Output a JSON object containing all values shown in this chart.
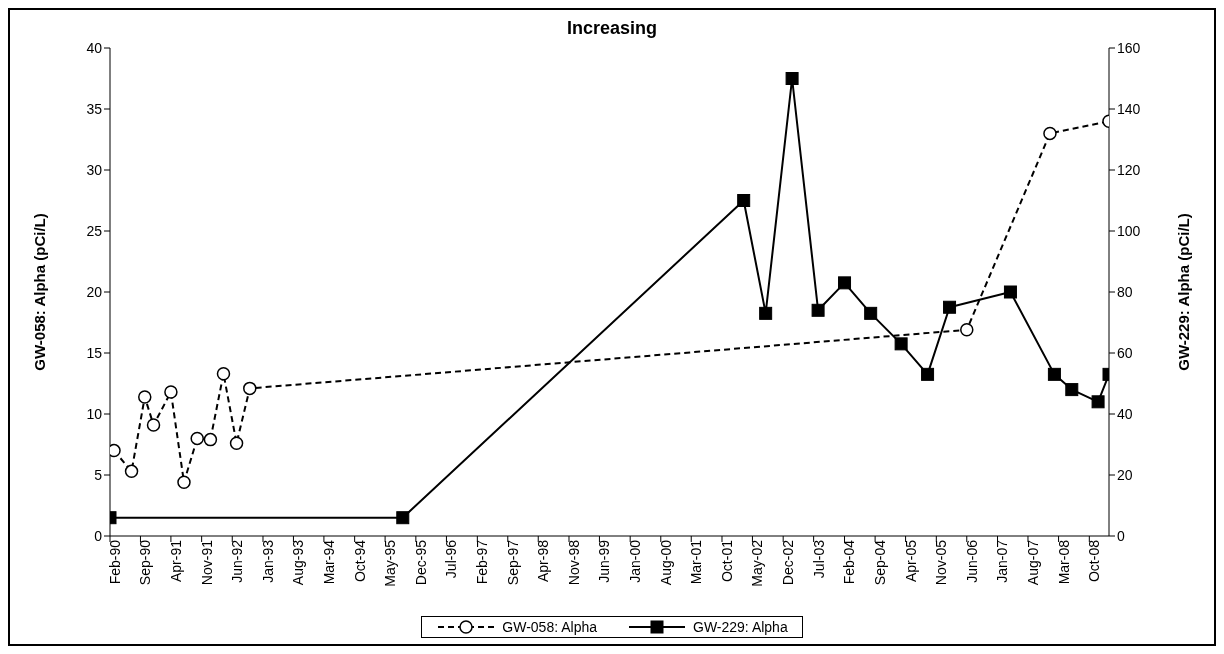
{
  "chart_data": {
    "type": "line",
    "title": "Increasing",
    "ylabel": "GW-058: Alpha (pCi/L)",
    "y2label": "GW-229: Alpha (pCi/L)",
    "xlim": [
      "1990-02",
      "2009-02-15"
    ],
    "xticks": [
      {
        "value": "1990-02",
        "label": "Feb-90"
      },
      {
        "value": "1990-09",
        "label": "Sep-90"
      },
      {
        "value": "1991-04",
        "label": "Apr-91"
      },
      {
        "value": "1991-11",
        "label": "Nov-91"
      },
      {
        "value": "1992-06",
        "label": "Jun-92"
      },
      {
        "value": "1993-01",
        "label": "Jan-93"
      },
      {
        "value": "1993-08",
        "label": "Aug-93"
      },
      {
        "value": "1994-03",
        "label": "Mar-94"
      },
      {
        "value": "1994-10",
        "label": "Oct-94"
      },
      {
        "value": "1995-05",
        "label": "May-95"
      },
      {
        "value": "1995-12",
        "label": "Dec-95"
      },
      {
        "value": "1996-07",
        "label": "Jul-96"
      },
      {
        "value": "1997-02",
        "label": "Feb-97"
      },
      {
        "value": "1997-09",
        "label": "Sep-97"
      },
      {
        "value": "1998-04",
        "label": "Apr-98"
      },
      {
        "value": "1998-11",
        "label": "Nov-98"
      },
      {
        "value": "1999-06",
        "label": "Jun-99"
      },
      {
        "value": "2000-01",
        "label": "Jan-00"
      },
      {
        "value": "2000-08",
        "label": "Aug-00"
      },
      {
        "value": "2001-03",
        "label": "Mar-01"
      },
      {
        "value": "2001-10",
        "label": "Oct-01"
      },
      {
        "value": "2002-05",
        "label": "May-02"
      },
      {
        "value": "2002-12",
        "label": "Dec-02"
      },
      {
        "value": "2003-07",
        "label": "Jul-03"
      },
      {
        "value": "2004-02",
        "label": "Feb-04"
      },
      {
        "value": "2004-09",
        "label": "Sep-04"
      },
      {
        "value": "2005-04",
        "label": "Apr-05"
      },
      {
        "value": "2005-11",
        "label": "Nov-05"
      },
      {
        "value": "2006-06",
        "label": "Jun-06"
      },
      {
        "value": "2007-01",
        "label": "Jan-07"
      },
      {
        "value": "2007-08",
        "label": "Aug-07"
      },
      {
        "value": "2008-03",
        "label": "Mar-08"
      },
      {
        "value": "2008-10",
        "label": "Oct-08"
      }
    ],
    "ylim": [
      0,
      40
    ],
    "yticks": [
      0,
      5,
      10,
      15,
      20,
      25,
      30,
      35,
      40
    ],
    "y2lim": [
      0,
      160
    ],
    "y2ticks": [
      0,
      20,
      40,
      60,
      80,
      100,
      120,
      140,
      160
    ],
    "legend": "bottom",
    "series": [
      {
        "name": "GW-058: Alpha",
        "color": "#000000",
        "marker": "circle",
        "line_style": "dashed",
        "x": [
          "1990-03",
          "1990-07",
          "1990-10",
          "1990-12",
          "1991-04",
          "1991-07",
          "1991-10",
          "1992-01",
          "1992-04",
          "1992-07",
          "1992-10",
          "2006-06",
          "2008-01",
          "2009-02-15"
        ],
        "values": [
          7.0,
          5.3,
          11.4,
          9.1,
          11.8,
          4.4,
          8.0,
          7.9,
          13.3,
          7.6,
          12.1,
          16.9,
          33,
          34
        ]
      },
      {
        "name": "GW-229: Alpha",
        "color": "#000000",
        "marker": "square",
        "line_style": "solid",
        "axis": "y2",
        "x": [
          "1990-02",
          "1995-09",
          "2002-03",
          "2002-08",
          "2003-02",
          "2003-08",
          "2004-02",
          "2004-08",
          "2005-03",
          "2005-09",
          "2006-02",
          "2007-04",
          "2008-02",
          "2008-06",
          "2008-12",
          "2009-02-15"
        ],
        "values": [
          6,
          6,
          110,
          73,
          150,
          74,
          83,
          73,
          63,
          53,
          75,
          80,
          53,
          48,
          44,
          53
        ]
      }
    ]
  }
}
